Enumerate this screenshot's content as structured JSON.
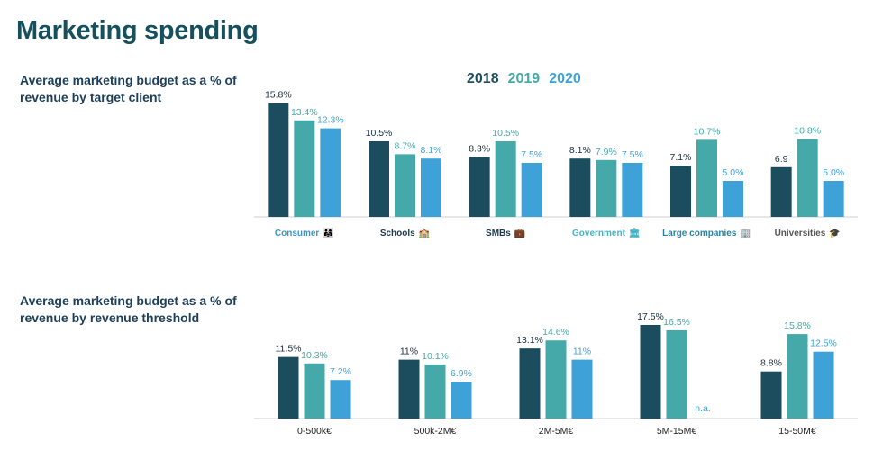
{
  "page": {
    "title": "Marketing spending"
  },
  "colors": {
    "y2018": "#1b4d5f",
    "y2019": "#45a8a9",
    "y2020": "#3ea2d8",
    "title": "#14505e"
  },
  "legend": [
    {
      "label": "2018",
      "color": "#1b4d5f"
    },
    {
      "label": "2019",
      "color": "#45a8a9"
    },
    {
      "label": "2020",
      "color": "#3ea2d8"
    }
  ],
  "chart_data": [
    {
      "type": "bar",
      "title": "Average marketing budget as a % of revenue by target client",
      "categories": [
        {
          "label": "Consumer",
          "icon": "family-icon",
          "glyph": "👨‍👩‍👧",
          "color": "#3a96c8"
        },
        {
          "label": "Schools",
          "icon": "school-icon",
          "glyph": "🏫",
          "color": "#1b3a4f"
        },
        {
          "label": "SMBs",
          "icon": "briefcase-icon",
          "glyph": "💼",
          "color": "#1b3a4f"
        },
        {
          "label": "Government",
          "icon": "government-building-icon",
          "glyph": "🏛",
          "color": "#45b3c4"
        },
        {
          "label": "Large companies",
          "icon": "office-building-icon",
          "glyph": "🏢",
          "color": "#2b7fa0"
        },
        {
          "label": "Universities",
          "icon": "graduation-cap-icon",
          "glyph": "🎓",
          "color": "#555555"
        }
      ],
      "series": [
        {
          "name": "2018",
          "values": [
            15.8,
            10.5,
            8.3,
            8.1,
            7.1,
            6.9
          ],
          "labels": [
            "15.8%",
            "10.5%",
            "8.3%",
            "8.1%",
            "7.1%",
            "6.9"
          ]
        },
        {
          "name": "2019",
          "values": [
            13.4,
            8.7,
            10.5,
            7.9,
            10.7,
            10.8
          ],
          "labels": [
            "13.4%",
            "8.7%",
            "10.5%",
            "7.9%",
            "10.7%",
            "10.8%"
          ]
        },
        {
          "name": "2020",
          "values": [
            12.3,
            8.1,
            7.5,
            7.5,
            5.0,
            5.0
          ],
          "labels": [
            "12.3%",
            "8.1%",
            "7.5%",
            "7.5%",
            "5.0%",
            "5.0%"
          ]
        }
      ],
      "ylim": [
        0,
        16
      ]
    },
    {
      "type": "bar",
      "title": "Average marketing budget as a % of revenue by revenue threshold",
      "categories": [
        {
          "label": "0-500k€"
        },
        {
          "label": "500k-2M€"
        },
        {
          "label": "2M-5M€"
        },
        {
          "label": "5M-15M€"
        },
        {
          "label": "15-50M€"
        }
      ],
      "series": [
        {
          "name": "2018",
          "values": [
            11.5,
            11,
            13.1,
            17.5,
            8.8
          ],
          "labels": [
            "11.5%",
            "11%",
            "13.1%",
            "17.5%",
            "8.8%"
          ]
        },
        {
          "name": "2019",
          "values": [
            10.3,
            10.1,
            14.6,
            16.5,
            15.8
          ],
          "labels": [
            "10.3%",
            "10.1%",
            "14.6%",
            "16.5%",
            "15.8%"
          ]
        },
        {
          "name": "2020",
          "values": [
            7.2,
            6.9,
            11,
            null,
            12.5
          ],
          "labels": [
            "7.2%",
            "6.9%",
            "11%",
            "n.a.",
            "12.5%"
          ]
        }
      ],
      "ylim": [
        0,
        17.5
      ]
    }
  ]
}
